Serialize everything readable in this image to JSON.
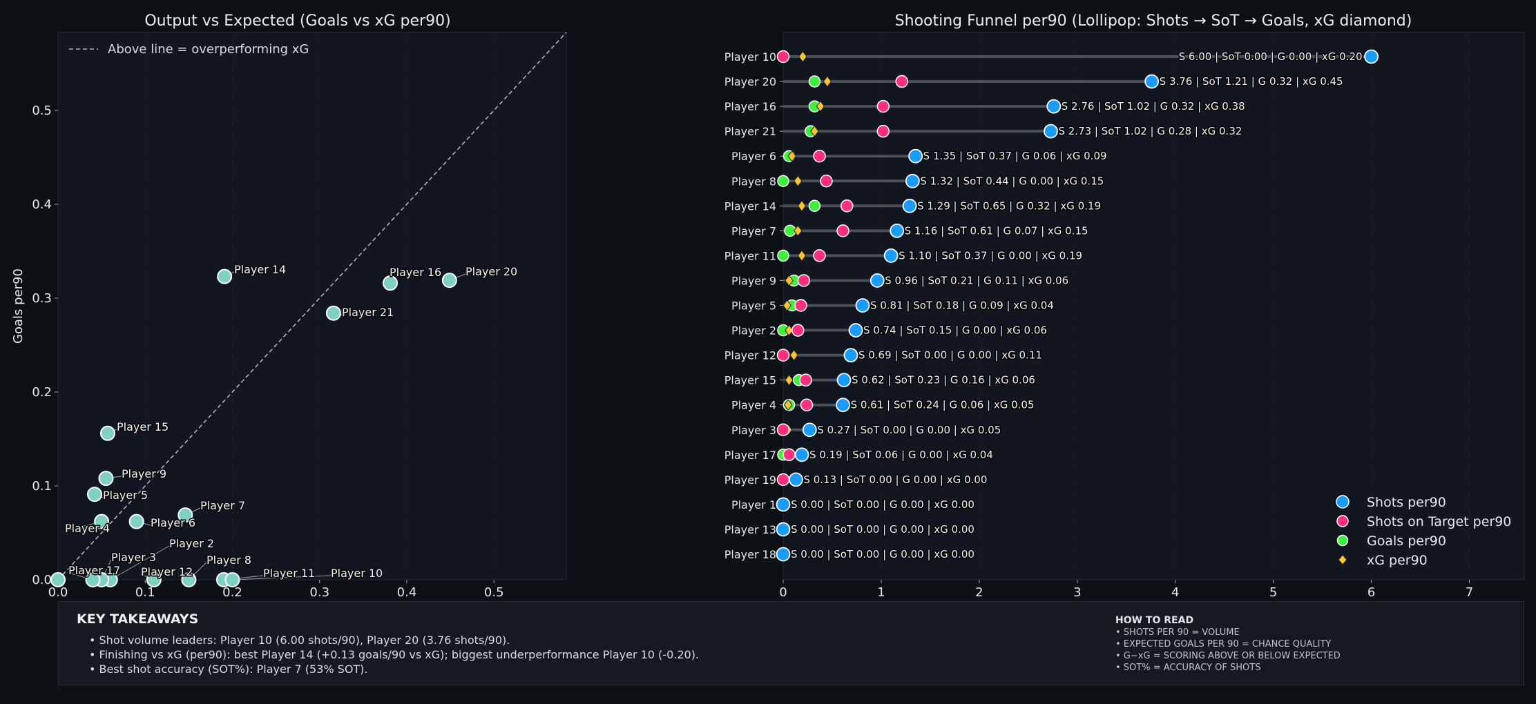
{
  "colors": {
    "figure_bg": "#0d1014",
    "axes_bg": "#111620",
    "scatter_point": "#80d0c0",
    "shots": "#1a9bff",
    "sot": "#ff2f80",
    "goals": "#3ef03e",
    "xg": "#f7c531",
    "stem": "#4a4f58"
  },
  "chart_data": [
    {
      "type": "scatter",
      "title": "Output vs Expected (Goals vs xG per90)",
      "xlabel": "",
      "ylabel": "Goals per90",
      "xlim": [
        0,
        0.583
      ],
      "ylim": [
        0,
        0.583
      ],
      "xticks": [
        "0.0",
        "0.1",
        "0.2",
        "0.3",
        "0.4",
        "0.5"
      ],
      "yticks": [
        "0.0",
        "0.1",
        "0.2",
        "0.3",
        "0.4",
        "0.5"
      ],
      "grid": true,
      "reference_line": {
        "type": "y=x",
        "style": "dashed",
        "legend": "Above line = overperforming xG"
      },
      "legend_position": "top-left",
      "points": [
        {
          "label": "Player 14",
          "x": 0.191,
          "y": 0.323
        },
        {
          "label": "Player 16",
          "x": 0.381,
          "y": 0.316
        },
        {
          "label": "Player 20",
          "x": 0.449,
          "y": 0.319
        },
        {
          "label": "Player 21",
          "x": 0.316,
          "y": 0.284
        },
        {
          "label": "Player 15",
          "x": 0.057,
          "y": 0.156
        },
        {
          "label": "Player 9",
          "x": 0.055,
          "y": 0.108
        },
        {
          "label": "Player 5",
          "x": 0.042,
          "y": 0.091
        },
        {
          "label": "Player 4",
          "x": 0.05,
          "y": 0.062
        },
        {
          "label": "Player 6",
          "x": 0.09,
          "y": 0.062
        },
        {
          "label": "Player 7",
          "x": 0.146,
          "y": 0.069
        },
        {
          "label": "Player 2",
          "x": 0.06,
          "y": 0.0
        },
        {
          "label": "Player 3",
          "x": 0.05,
          "y": 0.0
        },
        {
          "label": "Player 17",
          "x": 0.04,
          "y": 0.0
        },
        {
          "label": "Player 12",
          "x": 0.11,
          "y": 0.0
        },
        {
          "label": "Player 8",
          "x": 0.15,
          "y": 0.0
        },
        {
          "label": "Player 11",
          "x": 0.19,
          "y": 0.0
        },
        {
          "label": "Player 10",
          "x": 0.2,
          "y": 0.0
        }
      ]
    },
    {
      "type": "lollipop",
      "title": "Shooting Funnel per90 (Lollipop: Shots → SoT → Goals, xG diamond)",
      "xlim": [
        0,
        7.56
      ],
      "xticks": [
        "0",
        "1",
        "2",
        "3",
        "4",
        "5",
        "6",
        "7"
      ],
      "grid": true,
      "legend_position": "bottom-right",
      "legend": [
        "Shots per90",
        "Shots on Target per90",
        "Goals per90",
        "xG per90"
      ],
      "rows": [
        {
          "player": "Player 10",
          "shots": 6.0,
          "sot": 0.0,
          "goals": 0.0,
          "xg": 0.2,
          "text": "S 6.00 | SoT 0.00 | G 0.00 | xG 0.20"
        },
        {
          "player": "Player 20",
          "shots": 3.76,
          "sot": 1.21,
          "goals": 0.32,
          "xg": 0.45,
          "text": "S 3.76 | SoT 1.21 | G 0.32 | xG 0.45"
        },
        {
          "player": "Player 16",
          "shots": 2.76,
          "sot": 1.02,
          "goals": 0.32,
          "xg": 0.38,
          "text": "S 2.76 | SoT 1.02 | G 0.32 | xG 0.38"
        },
        {
          "player": "Player 21",
          "shots": 2.73,
          "sot": 1.02,
          "goals": 0.28,
          "xg": 0.32,
          "text": "S 2.73 | SoT 1.02 | G 0.28 | xG 0.32"
        },
        {
          "player": "Player 6",
          "shots": 1.35,
          "sot": 0.37,
          "goals": 0.06,
          "xg": 0.09,
          "text": "S 1.35 | SoT 0.37 | G 0.06 | xG 0.09"
        },
        {
          "player": "Player 8",
          "shots": 1.32,
          "sot": 0.44,
          "goals": 0.0,
          "xg": 0.15,
          "text": "S 1.32 | SoT 0.44 | G 0.00 | xG 0.15"
        },
        {
          "player": "Player 14",
          "shots": 1.29,
          "sot": 0.65,
          "goals": 0.32,
          "xg": 0.19,
          "text": "S 1.29 | SoT 0.65 | G 0.32 | xG 0.19"
        },
        {
          "player": "Player 7",
          "shots": 1.16,
          "sot": 0.61,
          "goals": 0.07,
          "xg": 0.15,
          "text": "S 1.16 | SoT 0.61 | G 0.07 | xG 0.15"
        },
        {
          "player": "Player 11",
          "shots": 1.1,
          "sot": 0.37,
          "goals": 0.0,
          "xg": 0.19,
          "text": "S 1.10 | SoT 0.37 | G 0.00 | xG 0.19"
        },
        {
          "player": "Player 9",
          "shots": 0.96,
          "sot": 0.21,
          "goals": 0.11,
          "xg": 0.06,
          "text": "S 0.96 | SoT 0.21 | G 0.11 | xG 0.06"
        },
        {
          "player": "Player 5",
          "shots": 0.81,
          "sot": 0.18,
          "goals": 0.09,
          "xg": 0.04,
          "text": "S 0.81 | SoT 0.18 | G 0.09 | xG 0.04"
        },
        {
          "player": "Player 2",
          "shots": 0.74,
          "sot": 0.15,
          "goals": 0.0,
          "xg": 0.06,
          "text": "S 0.74 | SoT 0.15 | G 0.00 | xG 0.06"
        },
        {
          "player": "Player 12",
          "shots": 0.69,
          "sot": 0.0,
          "goals": 0.0,
          "xg": 0.11,
          "text": "S 0.69 | SoT 0.00 | G 0.00 | xG 0.11"
        },
        {
          "player": "Player 15",
          "shots": 0.62,
          "sot": 0.23,
          "goals": 0.16,
          "xg": 0.06,
          "text": "S 0.62 | SoT 0.23 | G 0.16 | xG 0.06"
        },
        {
          "player": "Player 4",
          "shots": 0.61,
          "sot": 0.24,
          "goals": 0.06,
          "xg": 0.05,
          "text": "S 0.61 | SoT 0.24 | G 0.06 | xG 0.05"
        },
        {
          "player": "Player 3",
          "shots": 0.27,
          "sot": 0.0,
          "goals": 0.0,
          "xg": 0.05,
          "text": "S 0.27 | SoT 0.00 | G 0.00 | xG 0.05"
        },
        {
          "player": "Player 17",
          "shots": 0.19,
          "sot": 0.06,
          "goals": 0.0,
          "xg": 0.04,
          "text": "S 0.19 | SoT 0.06 | G 0.00 | xG 0.04"
        },
        {
          "player": "Player 19",
          "shots": 0.13,
          "sot": 0.0,
          "goals": 0.0,
          "xg": 0.0,
          "text": "S 0.13 | SoT 0.00 | G 0.00 | xG 0.00"
        },
        {
          "player": "Player 1",
          "shots": 0.0,
          "sot": 0.0,
          "goals": 0.0,
          "xg": 0.0,
          "text": "S 0.00 | SoT 0.00 | G 0.00 | xG 0.00"
        },
        {
          "player": "Player 13",
          "shots": 0.0,
          "sot": 0.0,
          "goals": 0.0,
          "xg": 0.0,
          "text": "S 0.00 | SoT 0.00 | G 0.00 | xG 0.00"
        },
        {
          "player": "Player 18",
          "shots": 0.0,
          "sot": 0.0,
          "goals": 0.0,
          "xg": 0.0,
          "text": "S 0.00 | SoT 0.00 | G 0.00 | xG 0.00"
        }
      ]
    }
  ],
  "takeaways": {
    "title": "KEY TAKEAWAYS",
    "bullets": [
      "• Shot volume leaders: Player 10 (6.00 shots/90), Player 20 (3.76 shots/90).",
      "• Finishing vs xG (per90): best Player 14 (+0.13 goals/90 vs xG); biggest underperformance Player 10 (-0.20).",
      "• Best shot accuracy (SOT%): Player 7 (53% SOT)."
    ]
  },
  "how_to_read": {
    "title": "HOW TO READ",
    "lines": [
      "• SHOTS PER 90 = VOLUME",
      "• EXPECTED GOALS PER 90 = CHANCE QUALITY",
      "• G−xG = SCORING ABOVE OR BELOW EXPECTED",
      "• SOT% = ACCURACY OF SHOTS"
    ]
  }
}
